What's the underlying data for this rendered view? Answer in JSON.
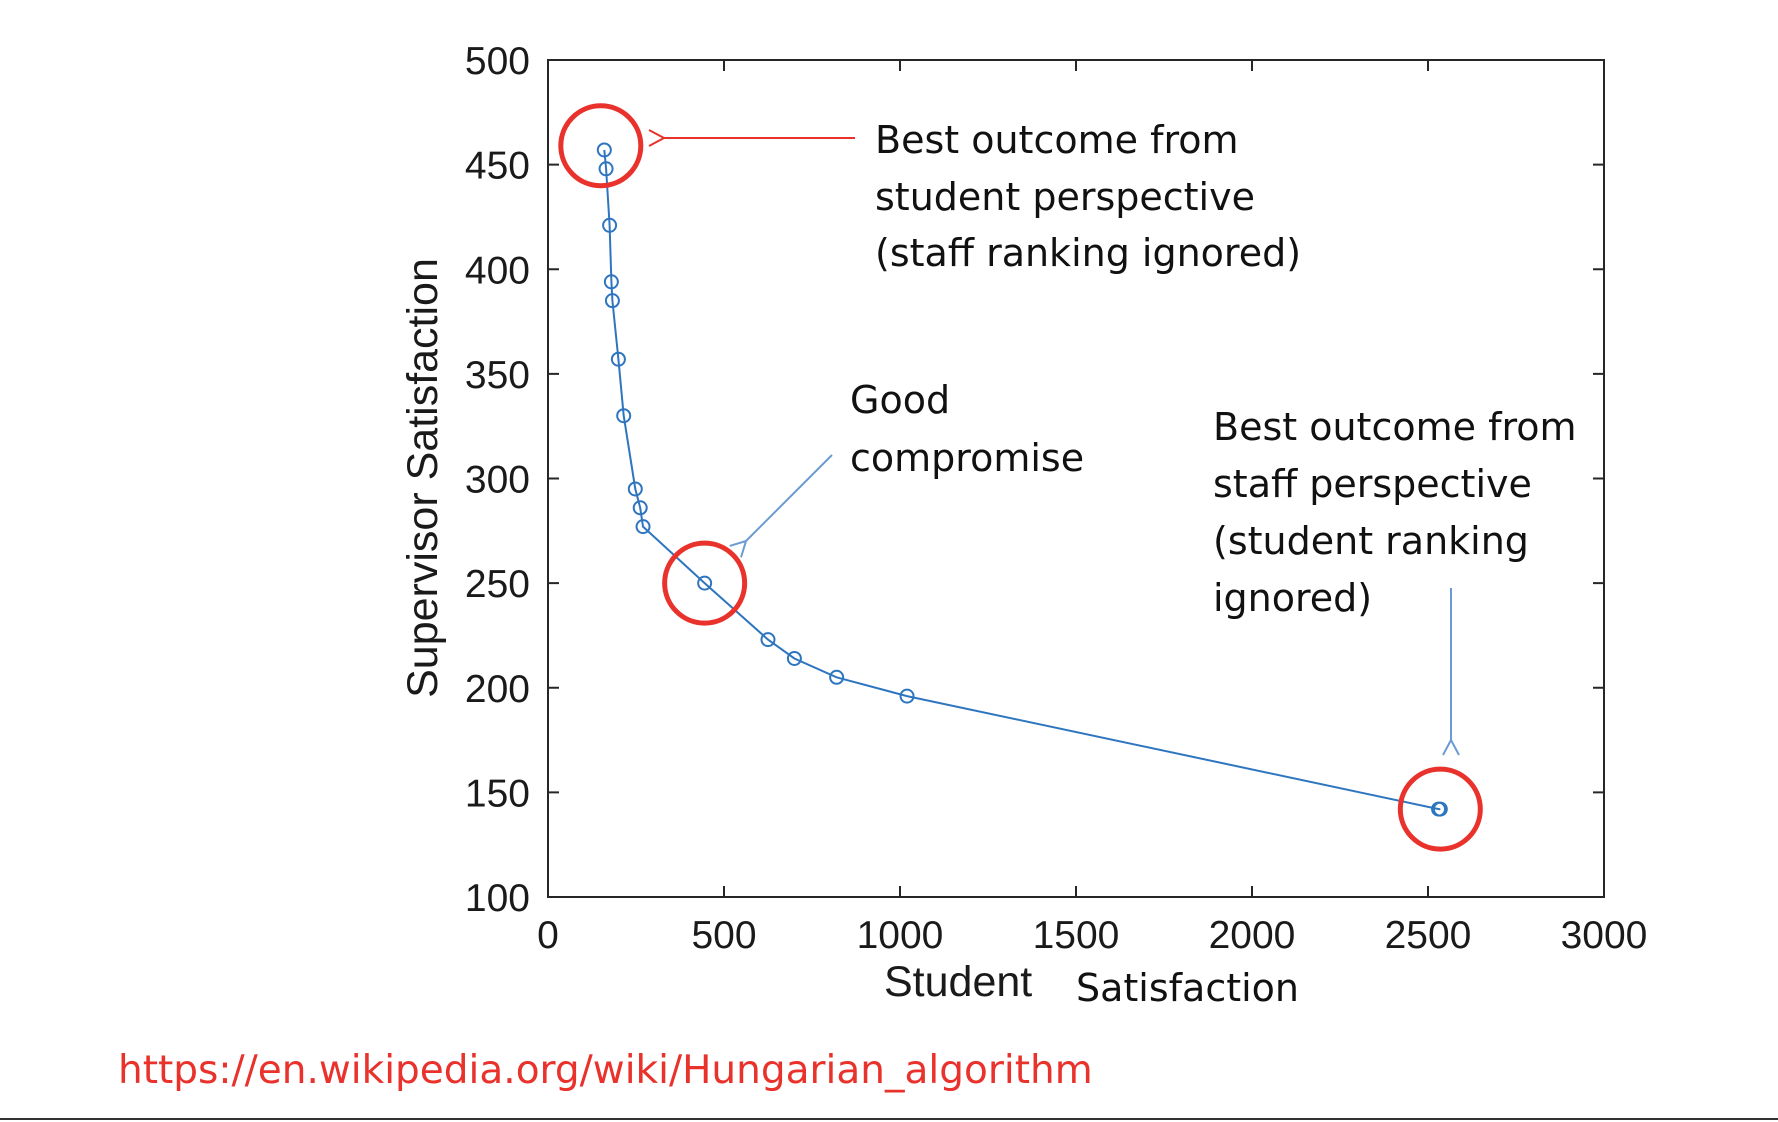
{
  "chart_data": {
    "type": "line",
    "xlabel_parts": [
      "Student",
      "Satisfaction"
    ],
    "ylabel": "Supervisor Satisfaction",
    "xlim": [
      0,
      3000
    ],
    "ylim": [
      100,
      500
    ],
    "xticks": [
      0,
      500,
      1000,
      1500,
      2000,
      2500,
      3000
    ],
    "yticks": [
      100,
      150,
      200,
      250,
      300,
      350,
      400,
      450,
      500
    ],
    "grid": false,
    "marker": "circle",
    "series": [
      {
        "color": "#2e75c0",
        "x": [
          160,
          165,
          175,
          180,
          183,
          200,
          215,
          248,
          262,
          270,
          445,
          625,
          700,
          820,
          1020,
          2530,
          2535
        ],
        "y": [
          457,
          448,
          421,
          394,
          385,
          357,
          330,
          295,
          286,
          277,
          250,
          223,
          214,
          205,
          196,
          142,
          142
        ]
      }
    ],
    "highlights": [
      {
        "x": 150,
        "y": 459,
        "color": "#e8322b"
      },
      {
        "x": 445,
        "y": 250,
        "color": "#e8322b"
      },
      {
        "x": 2535,
        "y": 142,
        "color": "#e8322b"
      }
    ],
    "annotations": [
      {
        "id": "student",
        "lines": [
          "Best outcome from",
          "student perspective",
          "(staff ranking ignored)"
        ],
        "arrow_color": "#e8322b"
      },
      {
        "id": "compromise",
        "lines": [
          "Good",
          "compromise"
        ],
        "arrow_color": "#6b9bd2"
      },
      {
        "id": "staff",
        "lines": [
          "Best outcome from",
          "staff perspective",
          "(student ranking",
          "ignored)"
        ],
        "arrow_color": "#6b9bd2"
      }
    ]
  },
  "source": {
    "url_text": "https://en.wikipedia.org/wiki/Hungarian_algorithm"
  }
}
